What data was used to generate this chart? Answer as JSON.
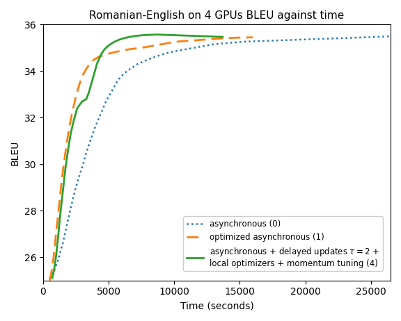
{
  "title": "Romanian-English on 4 GPUs BLEU against time",
  "xlabel": "Time (seconds)",
  "ylabel": "BLEU",
  "xlim": [
    0,
    26500
  ],
  "ylim": [
    25.0,
    36
  ],
  "yticks": [
    26,
    28,
    30,
    32,
    34,
    36
  ],
  "xticks": [
    0,
    5000,
    10000,
    15000,
    20000,
    25000
  ],
  "blue_line": {
    "label": "asynchronous (0)",
    "color": "#1f77b4",
    "linestyle": "dotted",
    "linewidth": 1.8,
    "x": [
      500,
      700,
      900,
      1100,
      1300,
      1500,
      1700,
      1900,
      2100,
      2400,
      2700,
      3000,
      3300,
      3600,
      3900,
      4200,
      4500,
      4800,
      5100,
      5400,
      5700,
      6000,
      6400,
      6800,
      7200,
      7600,
      8000,
      8500,
      9000,
      9500,
      10000,
      10500,
      11000,
      11500,
      12000,
      12500,
      13000,
      13500,
      14000,
      15000,
      16000,
      17000,
      18000,
      19000,
      20000,
      21000,
      22000,
      23000,
      24000,
      25000,
      26000,
      26500
    ],
    "y": [
      25.1,
      25.3,
      25.5,
      25.8,
      26.2,
      26.6,
      27.1,
      27.6,
      28.1,
      28.8,
      29.4,
      29.9,
      30.5,
      31.0,
      31.5,
      31.9,
      32.3,
      32.7,
      33.0,
      33.3,
      33.6,
      33.8,
      34.0,
      34.15,
      34.3,
      34.4,
      34.5,
      34.6,
      34.7,
      34.78,
      34.85,
      34.9,
      34.95,
      35.0,
      35.05,
      35.1,
      35.15,
      35.18,
      35.2,
      35.25,
      35.28,
      35.3,
      35.32,
      35.34,
      35.36,
      35.38,
      35.4,
      35.42,
      35.44,
      35.46,
      35.48,
      35.5
    ]
  },
  "orange_line": {
    "label": "optimized asynchronous (1)",
    "color": "#ff7f0e",
    "linestyle": "dashed",
    "linewidth": 2.0,
    "dashes": [
      6,
      3
    ],
    "x": [
      500,
      650,
      800,
      950,
      1100,
      1250,
      1400,
      1600,
      1800,
      2000,
      2250,
      2500,
      2750,
      3000,
      3300,
      3600,
      3900,
      4200,
      4600,
      5000,
      5500,
      6000,
      6500,
      7000,
      7500,
      8000,
      8500,
      9000,
      9500,
      10000,
      10500,
      11000,
      11500,
      12000,
      12500,
      13000,
      13500,
      14000,
      15000,
      16000
    ],
    "y": [
      25.0,
      25.4,
      26.0,
      26.8,
      27.6,
      28.4,
      29.2,
      30.1,
      30.9,
      31.6,
      32.3,
      32.9,
      33.4,
      33.8,
      34.1,
      34.35,
      34.5,
      34.6,
      34.68,
      34.75,
      34.82,
      34.88,
      34.93,
      34.97,
      35.0,
      35.05,
      35.1,
      35.15,
      35.2,
      35.25,
      35.28,
      35.3,
      35.32,
      35.34,
      35.36,
      35.38,
      35.4,
      35.42,
      35.44,
      35.45
    ]
  },
  "green_line": {
    "label": "asynchronous + delayed updates $\\tau = 2$ +\nlocal optimizers + momentum tuning (4)",
    "color": "#2ca02c",
    "linestyle": "solid",
    "linewidth": 2.0,
    "x": [
      700,
      850,
      1000,
      1150,
      1300,
      1500,
      1700,
      1900,
      2100,
      2350,
      2600,
      2850,
      3000,
      3150,
      3300,
      3500,
      3700,
      3900,
      4100,
      4400,
      4700,
      5000,
      5400,
      5800,
      6200,
      6700,
      7200,
      7700,
      8200,
      8700,
      9200,
      9700,
      10200,
      10700,
      11200,
      11700,
      12200,
      12700,
      13200,
      13700
    ],
    "y": [
      25.1,
      25.5,
      26.1,
      26.9,
      27.8,
      28.8,
      29.8,
      30.6,
      31.3,
      31.9,
      32.4,
      32.6,
      32.7,
      32.75,
      32.8,
      33.1,
      33.5,
      33.9,
      34.3,
      34.7,
      34.95,
      35.1,
      35.25,
      35.35,
      35.42,
      35.48,
      35.52,
      35.55,
      35.56,
      35.57,
      35.56,
      35.55,
      35.54,
      35.53,
      35.52,
      35.51,
      35.5,
      35.49,
      35.48,
      35.47
    ]
  }
}
